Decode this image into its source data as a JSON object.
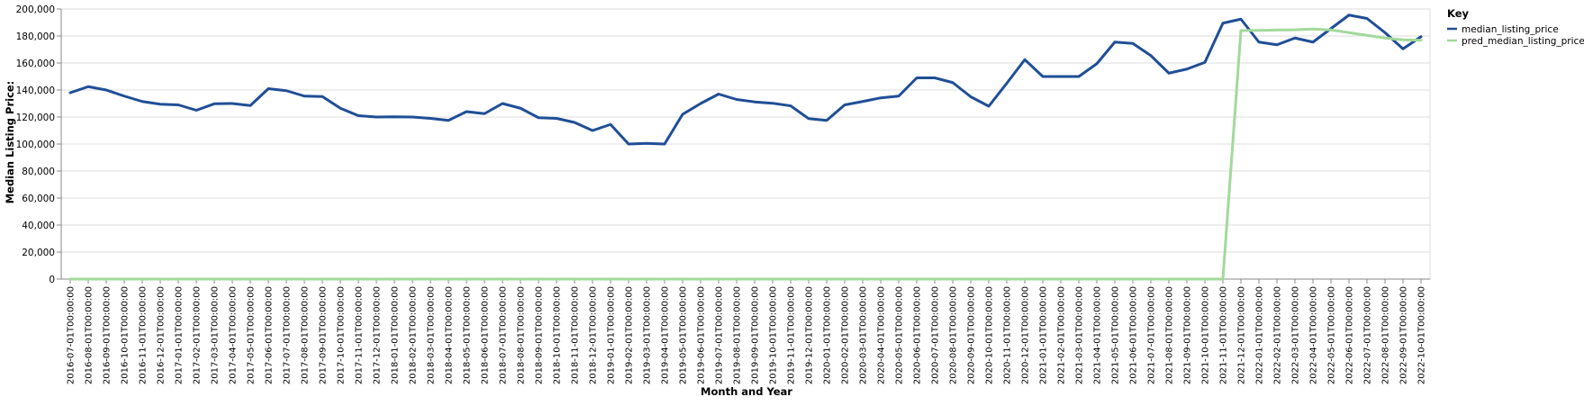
{
  "chart_data": {
    "type": "line",
    "xlabel": "Month and Year",
    "ylabel": "Median Listing Price:",
    "ylim": [
      0,
      200000
    ],
    "yticks": [
      0,
      20000,
      40000,
      60000,
      80000,
      100000,
      120000,
      140000,
      160000,
      180000,
      200000
    ],
    "ytick_labels": [
      "0",
      "20,000",
      "40,000",
      "60,000",
      "80,000",
      "100,000",
      "120,000",
      "140,000",
      "160,000",
      "180,000",
      "200,000"
    ],
    "grid": true,
    "legend_placement": "top-right",
    "legend_title": "Key",
    "x": [
      "2016-07-01T00:00:00",
      "2016-08-01T00:00:00",
      "2016-09-01T00:00:00",
      "2016-10-01T00:00:00",
      "2016-11-01T00:00:00",
      "2016-12-01T00:00:00",
      "2017-01-01T00:00:00",
      "2017-02-01T00:00:00",
      "2017-03-01T00:00:00",
      "2017-04-01T00:00:00",
      "2017-05-01T00:00:00",
      "2017-06-01T00:00:00",
      "2017-07-01T00:00:00",
      "2017-08-01T00:00:00",
      "2017-09-01T00:00:00",
      "2017-10-01T00:00:00",
      "2017-11-01T00:00:00",
      "2017-12-01T00:00:00",
      "2018-01-01T00:00:00",
      "2018-02-01T00:00:00",
      "2018-03-01T00:00:00",
      "2018-04-01T00:00:00",
      "2018-05-01T00:00:00",
      "2018-06-01T00:00:00",
      "2018-07-01T00:00:00",
      "2018-08-01T00:00:00",
      "2018-09-01T00:00:00",
      "2018-10-01T00:00:00",
      "2018-11-01T00:00:00",
      "2018-12-01T00:00:00",
      "2019-01-01T00:00:00",
      "2019-02-01T00:00:00",
      "2019-03-01T00:00:00",
      "2019-04-01T00:00:00",
      "2019-05-01T00:00:00",
      "2019-06-01T00:00:00",
      "2019-07-01T00:00:00",
      "2019-08-01T00:00:00",
      "2019-09-01T00:00:00",
      "2019-10-01T00:00:00",
      "2019-11-01T00:00:00",
      "2019-12-01T00:00:00",
      "2020-01-01T00:00:00",
      "2020-02-01T00:00:00",
      "2020-03-01T00:00:00",
      "2020-04-01T00:00:00",
      "2020-05-01T00:00:00",
      "2020-06-01T00:00:00",
      "2020-07-01T00:00:00",
      "2020-08-01T00:00:00",
      "2020-09-01T00:00:00",
      "2020-10-01T00:00:00",
      "2020-11-01T00:00:00",
      "2020-12-01T00:00:00",
      "2021-01-01T00:00:00",
      "2021-02-01T00:00:00",
      "2021-03-01T00:00:00",
      "2021-04-01T00:00:00",
      "2021-05-01T00:00:00",
      "2021-06-01T00:00:00",
      "2021-07-01T00:00:00",
      "2021-08-01T00:00:00",
      "2021-09-01T00:00:00",
      "2021-10-01T00:00:00",
      "2021-11-01T00:00:00",
      "2021-12-01T00:00:00",
      "2022-01-01T00:00:00",
      "2022-02-01T00:00:00",
      "2022-03-01T00:00:00",
      "2022-04-01T00:00:00",
      "2022-05-01T00:00:00",
      "2022-06-01T00:00:00",
      "2022-07-01T00:00:00",
      "2022-08-01T00:00:00",
      "2022-09-01T00:00:00",
      "2022-10-01T00:00:00"
    ],
    "series": [
      {
        "name": "median_listing_price",
        "color": "#1f4e96",
        "values": [
          138000,
          142500,
          140000,
          135500,
          131500,
          129500,
          129000,
          125000,
          129800,
          130000,
          128500,
          141000,
          139500,
          135500,
          135200,
          126500,
          121000,
          120000,
          120200,
          120000,
          119000,
          117500,
          124000,
          122500,
          130000,
          126500,
          119500,
          119000,
          116000,
          110000,
          114500,
          100000,
          100500,
          100000,
          122000,
          130000,
          137000,
          133000,
          131200,
          130200,
          128300,
          118800,
          117500,
          129000,
          131500,
          134200,
          135500,
          149000,
          149000,
          145500,
          135000,
          128000,
          145000,
          162500,
          150000,
          150000,
          150000,
          159500,
          175500,
          174500,
          165500,
          152500,
          155500,
          160500,
          189500,
          192500,
          175500,
          173500,
          178500,
          175500,
          185500,
          195500,
          193000,
          182500,
          170500,
          179500
        ]
      },
      {
        "name": "pred_median_listing_price",
        "color": "#a2d99b",
        "values": [
          0,
          0,
          0,
          0,
          0,
          0,
          0,
          0,
          0,
          0,
          0,
          0,
          0,
          0,
          0,
          0,
          0,
          0,
          0,
          0,
          0,
          0,
          0,
          0,
          0,
          0,
          0,
          0,
          0,
          0,
          0,
          0,
          0,
          0,
          0,
          0,
          0,
          0,
          0,
          0,
          0,
          0,
          0,
          0,
          0,
          0,
          0,
          0,
          0,
          0,
          0,
          0,
          0,
          0,
          0,
          0,
          0,
          0,
          0,
          0,
          0,
          0,
          0,
          0,
          0,
          184000,
          184200,
          184400,
          184600,
          185200,
          184500,
          182500,
          180500,
          178500,
          177200,
          176800
        ]
      }
    ]
  }
}
